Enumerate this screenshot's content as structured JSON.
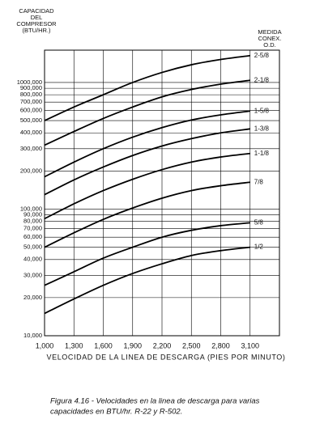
{
  "chart_data": {
    "type": "line",
    "y_title_lines": [
      "CAPACIDAD",
      "DEL",
      "COMPRESOR",
      "(BTU/HR.)"
    ],
    "legend_title_lines": [
      "MEDIDA",
      "CONEX.",
      "O.D."
    ],
    "x_label": "VELOCIDAD DE LA LINEA DE DESCARGA (PIES POR MINUTO)",
    "caption_lines": [
      "Figura 4.16 - Velocidades en la linea de descarga para varias",
      "capacidades en BTU/hr.  R-22 y R-502."
    ],
    "log_y": true,
    "grid": true,
    "xlim": [
      1000,
      3400
    ],
    "ylim": [
      10000,
      1800000
    ],
    "xticks": [
      {
        "value": 1000,
        "label": "1,000"
      },
      {
        "value": 1300,
        "label": "1,300"
      },
      {
        "value": 1600,
        "label": "1,600"
      },
      {
        "value": 1900,
        "label": "1,900"
      },
      {
        "value": 2200,
        "label": "2,200"
      },
      {
        "value": 2500,
        "label": "2,500"
      },
      {
        "value": 2800,
        "label": "2,800"
      },
      {
        "value": 3100,
        "label": "3,100"
      }
    ],
    "yticks": [
      {
        "value": 10000,
        "label": "10,000"
      },
      {
        "value": 20000,
        "label": "20,000"
      },
      {
        "value": 30000,
        "label": "30,000"
      },
      {
        "value": 40000,
        "label": "40,000"
      },
      {
        "value": 50000,
        "label": "50,000"
      },
      {
        "value": 60000,
        "label": "60,000"
      },
      {
        "value": 70000,
        "label": "70,000"
      },
      {
        "value": 80000,
        "label": "80,000"
      },
      {
        "value": 90000,
        "label": "90,000"
      },
      {
        "value": 100000,
        "label": "100,000"
      },
      {
        "value": 200000,
        "label": "200,000"
      },
      {
        "value": 300000,
        "label": "300,000"
      },
      {
        "value": 400000,
        "label": "400,000"
      },
      {
        "value": 500000,
        "label": "500,000"
      },
      {
        "value": 600000,
        "label": "600,000"
      },
      {
        "value": 700000,
        "label": "700,000"
      },
      {
        "value": 800000,
        "label": "800,000"
      },
      {
        "value": 900000,
        "label": "900,000"
      },
      {
        "value": 1000000,
        "label": "1000,000"
      }
    ],
    "x": [
      1000,
      1300,
      1600,
      1900,
      2200,
      2500,
      2800,
      3100
    ],
    "series": [
      {
        "name": "2-5/8",
        "color": "#000000",
        "values": [
          500000,
          640000,
          800000,
          1000000,
          1200000,
          1380000,
          1520000,
          1630000
        ]
      },
      {
        "name": "2-1/8",
        "color": "#000000",
        "values": [
          320000,
          410000,
          520000,
          640000,
          770000,
          880000,
          970000,
          1040000
        ]
      },
      {
        "name": "1-5/8",
        "color": "#000000",
        "values": [
          180000,
          235000,
          300000,
          370000,
          440000,
          505000,
          555000,
          595000
        ]
      },
      {
        "name": "1-3/8",
        "color": "#000000",
        "values": [
          130000,
          170000,
          215000,
          265000,
          315000,
          360000,
          400000,
          430000
        ]
      },
      {
        "name": "1-1/8",
        "color": "#000000",
        "values": [
          84000,
          110000,
          140000,
          172000,
          205000,
          235000,
          258000,
          275000
        ]
      },
      {
        "name": "7/8",
        "color": "#000000",
        "values": [
          50000,
          65000,
          83000,
          102000,
          122000,
          140000,
          153000,
          163000
        ]
      },
      {
        "name": "5/8",
        "color": "#000000",
        "values": [
          25000,
          32000,
          41000,
          50000,
          60000,
          68000,
          74000,
          78000
        ]
      },
      {
        "name": "1/2",
        "color": "#000000",
        "values": [
          15000,
          19500,
          25000,
          31000,
          37000,
          43000,
          47000,
          50000
        ]
      }
    ]
  }
}
